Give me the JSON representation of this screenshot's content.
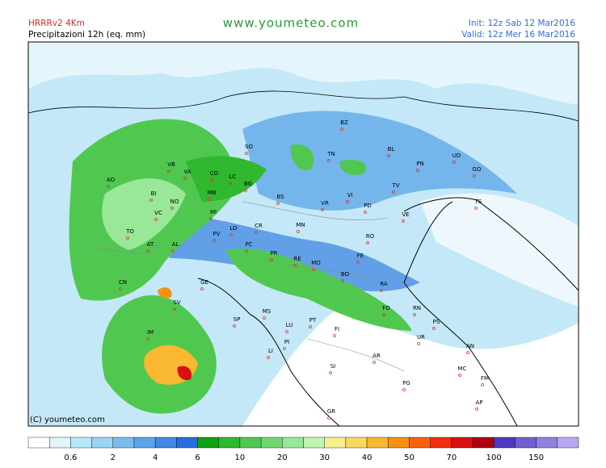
{
  "header": {
    "model": "HRRRv2  4Km",
    "field": "Precipitazioni 12h (eq. mm)",
    "site": "www.youmeteo.com",
    "init": "Init: 12z Sab  12 Mar2016",
    "valid": "Valid: 12z Mer  16 Mar2016"
  },
  "copyright": "(C) youmeteo.com",
  "cities": [
    "BZ",
    "TN",
    "BL",
    "UD",
    "PN",
    "GO",
    "TS",
    "TV",
    "VE",
    "PD",
    "VI",
    "VR",
    "BS",
    "BG",
    "LC",
    "CO",
    "SO",
    "VB",
    "VA",
    "MB",
    "MI",
    "NO",
    "BI",
    "VC",
    "AO",
    "TO",
    "AT",
    "AL",
    "PV",
    "LO",
    "CR",
    "MN",
    "RO",
    "FE",
    "PR",
    "PC",
    "RE",
    "MO",
    "BO",
    "RA",
    "GE",
    "SV",
    "CN",
    "IM",
    "SP",
    "MS",
    "LU",
    "PT",
    "PI",
    "FI",
    "LI",
    "FO",
    "RN",
    "PS",
    "UR",
    "AN",
    "AR",
    "SI",
    "PG",
    "MC",
    "FM",
    "AP",
    "GR"
  ],
  "colorbar": {
    "colors": [
      "#ffffff",
      "#e0f6fa",
      "#b8e8f8",
      "#98d4f4",
      "#78bcec",
      "#5aa4e8",
      "#4088e0",
      "#2a6cdc",
      "#10a010",
      "#30b830",
      "#50c850",
      "#70d870",
      "#98e898",
      "#c0f4b0",
      "#f8f090",
      "#f8d860",
      "#f8b830",
      "#f89010",
      "#f86010",
      "#f03010",
      "#d81010",
      "#b00010",
      "#5038c0",
      "#7060d0",
      "#9080e0",
      "#b8a8f0"
    ],
    "labels": [
      "0.6",
      "2",
      "4",
      "6",
      "10",
      "20",
      "30",
      "40",
      "50",
      "70",
      "100",
      "150"
    ]
  }
}
